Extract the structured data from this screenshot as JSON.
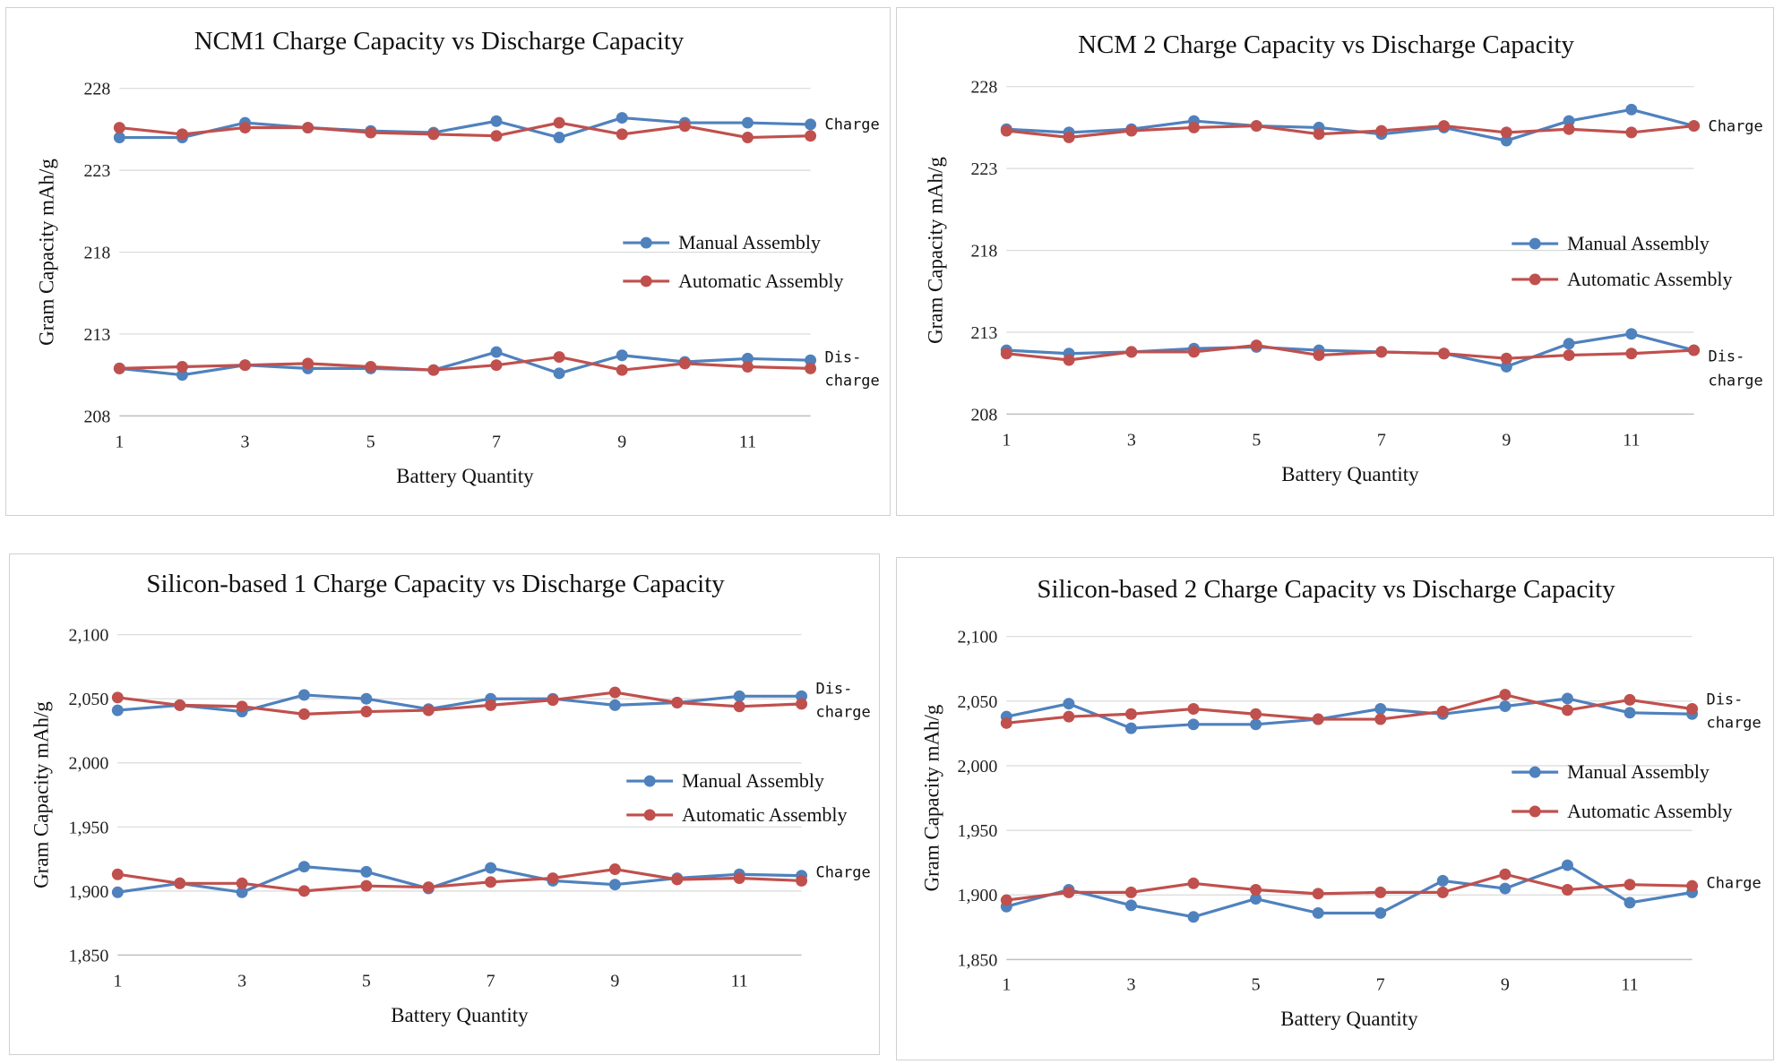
{
  "colors": {
    "manual": "#4f81bd",
    "automatic": "#c0504d",
    "grid": "#d9d9d9"
  },
  "chart_data": [
    {
      "id": "ncm1",
      "type": "line",
      "title": "NCM1 Charge Capacity vs Discharge Capacity",
      "xlabel": "Battery Quantity",
      "ylabel": "Gram Capacity mAh/g",
      "ylim": [
        208,
        228
      ],
      "yticks": [
        208,
        213,
        218,
        223,
        228
      ],
      "ytick_labels": [
        "208",
        "213",
        "218",
        "223",
        "228"
      ],
      "x": [
        1,
        2,
        3,
        4,
        5,
        6,
        7,
        8,
        9,
        10,
        11,
        12
      ],
      "xtick_labels": [
        "1",
        "3",
        "5",
        "7",
        "9",
        "11"
      ],
      "legend": [
        "Manual Assembly",
        "Automatic Assembly"
      ],
      "annotations": {
        "upper": [
          "Charge"
        ],
        "lower": [
          "Dis-",
          "charge"
        ]
      },
      "series": [
        {
          "name": "Manual Assembly",
          "group": "upper",
          "values": [
            225.0,
            225.0,
            225.9,
            225.6,
            225.4,
            225.3,
            226.0,
            225.0,
            226.2,
            225.9,
            225.9,
            225.8
          ]
        },
        {
          "name": "Automatic Assembly",
          "group": "upper",
          "values": [
            225.6,
            225.2,
            225.6,
            225.6,
            225.3,
            225.2,
            225.1,
            225.9,
            225.2,
            225.7,
            225.0,
            225.1
          ]
        },
        {
          "name": "Manual Assembly",
          "group": "lower",
          "values": [
            210.9,
            210.5,
            211.1,
            210.9,
            210.9,
            210.8,
            211.9,
            210.6,
            211.7,
            211.3,
            211.5,
            211.4
          ]
        },
        {
          "name": "Automatic Assembly",
          "group": "lower",
          "values": [
            210.9,
            211.0,
            211.1,
            211.2,
            211.0,
            210.8,
            211.1,
            211.6,
            210.8,
            211.2,
            211.0,
            210.9
          ]
        }
      ]
    },
    {
      "id": "ncm2",
      "type": "line",
      "title": "NCM 2 Charge Capacity vs Discharge Capacity",
      "xlabel": "Battery Quantity",
      "ylabel": "Gram Capacity mAh/g",
      "ylim": [
        208,
        228
      ],
      "yticks": [
        208,
        213,
        218,
        223,
        228
      ],
      "ytick_labels": [
        "208",
        "213",
        "218",
        "223",
        "228"
      ],
      "x": [
        1,
        2,
        3,
        4,
        5,
        6,
        7,
        8,
        9,
        10,
        11,
        12
      ],
      "xtick_labels": [
        "1",
        "3",
        "5",
        "7",
        "9",
        "11"
      ],
      "legend": [
        "Manual Assembly",
        "Automatic Assembly"
      ],
      "annotations": {
        "upper": [
          "Charge"
        ],
        "lower": [
          "Dis-",
          "charge"
        ]
      },
      "series": [
        {
          "name": "Manual Assembly",
          "group": "upper",
          "values": [
            225.4,
            225.2,
            225.4,
            225.9,
            225.6,
            225.5,
            225.1,
            225.5,
            224.7,
            225.9,
            226.6,
            225.6
          ]
        },
        {
          "name": "Automatic Assembly",
          "group": "upper",
          "values": [
            225.3,
            224.9,
            225.3,
            225.5,
            225.6,
            225.1,
            225.3,
            225.6,
            225.2,
            225.4,
            225.2,
            225.6
          ]
        },
        {
          "name": "Manual Assembly",
          "group": "lower",
          "values": [
            211.9,
            211.7,
            211.8,
            212.0,
            212.1,
            211.9,
            211.8,
            211.7,
            210.9,
            212.3,
            212.9,
            211.9
          ]
        },
        {
          "name": "Automatic Assembly",
          "group": "lower",
          "values": [
            211.7,
            211.3,
            211.8,
            211.8,
            212.2,
            211.6,
            211.8,
            211.7,
            211.4,
            211.6,
            211.7,
            211.9
          ]
        }
      ]
    },
    {
      "id": "si1",
      "type": "line",
      "title": "Silicon-based 1 Charge Capacity vs Discharge Capacity",
      "xlabel": "Battery Quantity",
      "ylabel": "Gram Capacity mAh/g",
      "ylim": [
        1850,
        2100
      ],
      "yticks": [
        1850,
        1900,
        1950,
        2000,
        2050,
        2100
      ],
      "ytick_labels": [
        "1,850",
        "1,900",
        "1,950",
        "2,000",
        "2,050",
        "2,100"
      ],
      "x": [
        1,
        2,
        3,
        4,
        5,
        6,
        7,
        8,
        9,
        10,
        11,
        12
      ],
      "xtick_labels": [
        "1",
        "3",
        "5",
        "7",
        "9",
        "11"
      ],
      "legend": [
        "Manual Assembly",
        "Automatic Assembly"
      ],
      "annotations": {
        "upper": [
          "Dis-",
          "charge"
        ],
        "lower": [
          "Charge"
        ]
      },
      "series": [
        {
          "name": "Manual Assembly",
          "group": "upper",
          "values": [
            2041,
            2045,
            2040,
            2053,
            2050,
            2042,
            2050,
            2050,
            2045,
            2047,
            2052,
            2052
          ]
        },
        {
          "name": "Automatic Assembly",
          "group": "upper",
          "values": [
            2051,
            2045,
            2044,
            2038,
            2040,
            2041,
            2045,
            2049,
            2055,
            2047,
            2044,
            2046
          ]
        },
        {
          "name": "Manual Assembly",
          "group": "lower",
          "values": [
            1899,
            1906,
            1899,
            1919,
            1915,
            1902,
            1918,
            1908,
            1905,
            1910,
            1913,
            1912
          ]
        },
        {
          "name": "Automatic Assembly",
          "group": "lower",
          "values": [
            1913,
            1906,
            1906,
            1900,
            1904,
            1903,
            1907,
            1910,
            1917,
            1909,
            1910,
            1908
          ]
        }
      ]
    },
    {
      "id": "si2",
      "type": "line",
      "title": "Silicon-based 2 Charge Capacity vs Discharge Capacity",
      "xlabel": "Battery Quantity",
      "ylabel": "Gram Capacity mAh/g",
      "ylim": [
        1850,
        2100
      ],
      "yticks": [
        1850,
        1900,
        1950,
        2000,
        2050,
        2100
      ],
      "ytick_labels": [
        "1,850",
        "1,900",
        "1,950",
        "2,000",
        "2,050",
        "2,100"
      ],
      "x": [
        1,
        2,
        3,
        4,
        5,
        6,
        7,
        8,
        9,
        10,
        11,
        12
      ],
      "xtick_labels": [
        "1",
        "3",
        "5",
        "7",
        "9",
        "11"
      ],
      "legend": [
        "Manual Assembly",
        "Automatic Assembly"
      ],
      "annotations": {
        "upper": [
          "Dis-",
          "charge"
        ],
        "lower": [
          "Charge"
        ]
      },
      "series": [
        {
          "name": "Manual Assembly",
          "group": "upper",
          "values": [
            2038,
            2048,
            2029,
            2032,
            2032,
            2036,
            2044,
            2040,
            2046,
            2052,
            2041,
            2040
          ]
        },
        {
          "name": "Automatic Assembly",
          "group": "upper",
          "values": [
            2033,
            2038,
            2040,
            2044,
            2040,
            2036,
            2036,
            2042,
            2055,
            2043,
            2051,
            2044
          ]
        },
        {
          "name": "Manual Assembly",
          "group": "lower",
          "values": [
            1891,
            1904,
            1892,
            1883,
            1897,
            1886,
            1886,
            1911,
            1905,
            1923,
            1894,
            1902
          ]
        },
        {
          "name": "Automatic Assembly",
          "group": "lower",
          "values": [
            1896,
            1902,
            1902,
            1909,
            1904,
            1901,
            1902,
            1902,
            1916,
            1904,
            1908,
            1907
          ]
        }
      ]
    }
  ]
}
